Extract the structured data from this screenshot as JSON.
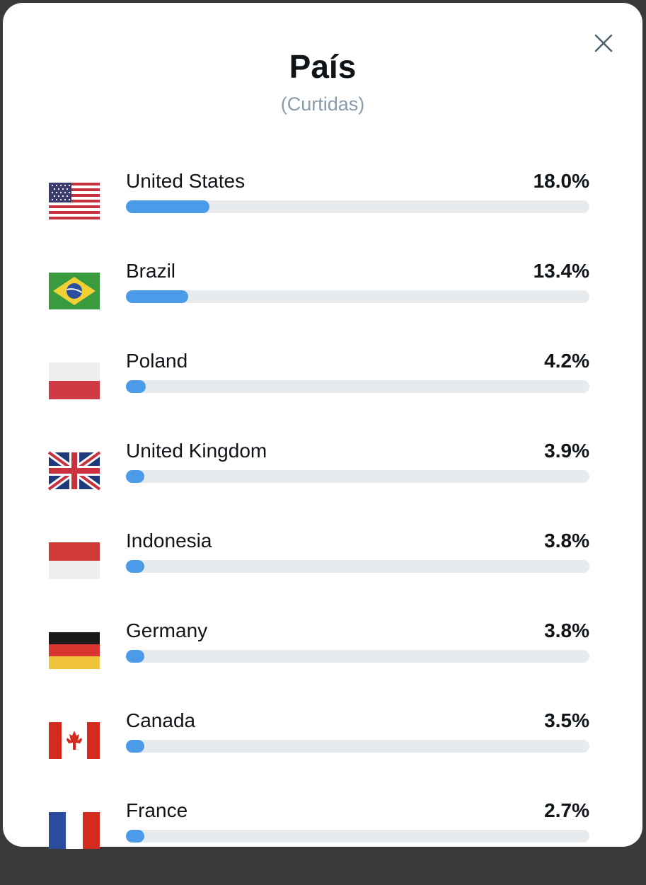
{
  "modal": {
    "title": "País",
    "subtitle": "(Curtidas)",
    "close_icon": "close-icon"
  },
  "colors": {
    "bar_fill": "#4c9be8",
    "bar_track": "#e7ebee",
    "text": "#0f1419",
    "subtitle": "#8a9bab"
  },
  "countries": [
    {
      "name": "United States",
      "percent_label": "18.0%",
      "share": 0.18,
      "flag": "us-flag-icon"
    },
    {
      "name": "Brazil",
      "percent_label": "13.4%",
      "share": 0.134,
      "flag": "brazil-flag-icon"
    },
    {
      "name": "Poland",
      "percent_label": "4.2%",
      "share": 0.042,
      "flag": "poland-flag-icon"
    },
    {
      "name": "United Kingdom",
      "percent_label": "3.9%",
      "share": 0.039,
      "flag": "uk-flag-icon"
    },
    {
      "name": "Indonesia",
      "percent_label": "3.8%",
      "share": 0.038,
      "flag": "indonesia-flag-icon"
    },
    {
      "name": "Germany",
      "percent_label": "3.8%",
      "share": 0.038,
      "flag": "germany-flag-icon"
    },
    {
      "name": "Canada",
      "percent_label": "3.5%",
      "share": 0.035,
      "flag": "canada-flag-icon"
    },
    {
      "name": "France",
      "percent_label": "2.7%",
      "share": 0.027,
      "flag": "france-flag-icon"
    }
  ]
}
